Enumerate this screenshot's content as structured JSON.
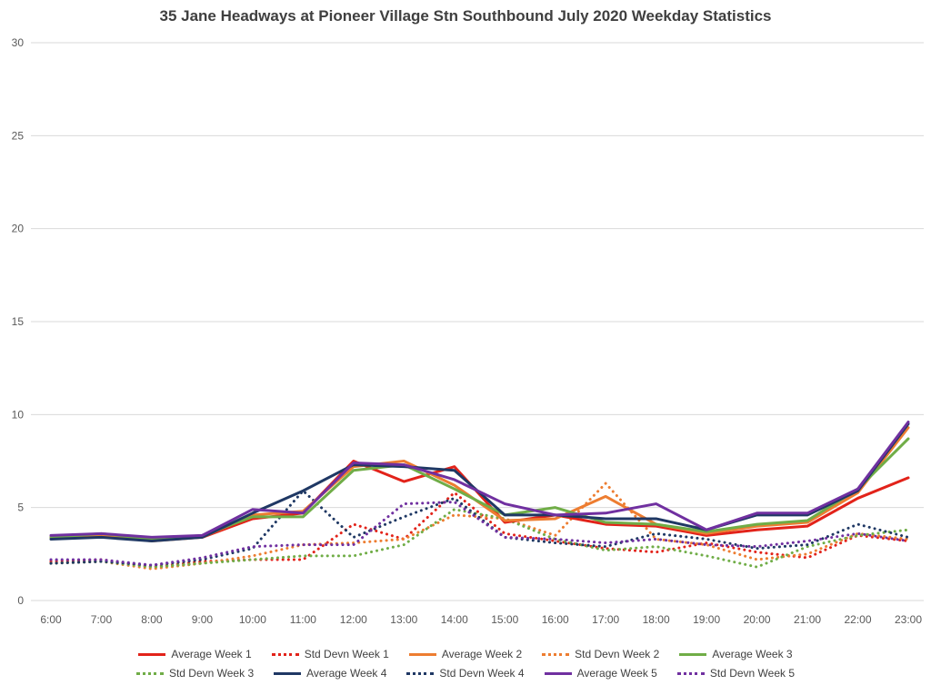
{
  "chart_data": {
    "type": "line",
    "title": "35 Jane Headways at Pioneer Village Stn Southbound July 2020 Weekday Statistics",
    "xlabel": "",
    "ylabel": "",
    "ylim": [
      0,
      30
    ],
    "yticks": [
      0,
      5,
      10,
      15,
      20,
      25,
      30
    ],
    "grid": true,
    "legend_position": "bottom",
    "categories": [
      "6:00",
      "7:00",
      "8:00",
      "9:00",
      "10:00",
      "11:00",
      "12:00",
      "13:00",
      "14:00",
      "15:00",
      "16:00",
      "17:00",
      "18:00",
      "19:00",
      "20:00",
      "21:00",
      "22:00",
      "23:00"
    ],
    "series": [
      {
        "name": "Average Week 1",
        "color": "#e2231a",
        "style": "solid",
        "values": [
          3.4,
          3.5,
          3.3,
          3.4,
          4.4,
          4.7,
          7.5,
          6.4,
          7.2,
          4.2,
          4.6,
          4.1,
          4.0,
          3.5,
          3.8,
          4.0,
          5.5,
          6.6
        ]
      },
      {
        "name": "Std Devn Week 1",
        "color": "#e2231a",
        "style": "dotted",
        "values": [
          2.1,
          2.2,
          1.8,
          2.1,
          2.2,
          2.2,
          4.1,
          3.3,
          5.8,
          3.6,
          3.2,
          2.8,
          2.6,
          3.1,
          2.6,
          2.3,
          3.5,
          3.2
        ]
      },
      {
        "name": "Average Week 2",
        "color": "#ed7d31",
        "style": "solid",
        "values": [
          3.4,
          3.5,
          3.2,
          3.4,
          4.6,
          4.8,
          7.2,
          7.5,
          6.2,
          4.3,
          4.4,
          5.6,
          4.1,
          3.6,
          4.0,
          4.2,
          5.8,
          9.3
        ]
      },
      {
        "name": "Std Devn Week 2",
        "color": "#ed7d31",
        "style": "dotted",
        "values": [
          2.0,
          2.1,
          1.7,
          2.0,
          2.4,
          3.0,
          3.1,
          3.3,
          4.6,
          4.4,
          3.5,
          6.3,
          3.3,
          3.0,
          2.2,
          2.5,
          3.6,
          3.3
        ]
      },
      {
        "name": "Average Week 3",
        "color": "#70ad47",
        "style": "solid",
        "values": [
          3.4,
          3.6,
          3.3,
          3.5,
          4.5,
          4.5,
          7.0,
          7.3,
          6.0,
          4.6,
          5.0,
          4.2,
          4.1,
          3.7,
          4.1,
          4.3,
          6.0,
          8.7
        ]
      },
      {
        "name": "Std Devn Week 3",
        "color": "#70ad47",
        "style": "dotted",
        "values": [
          2.0,
          2.1,
          1.8,
          2.0,
          2.2,
          2.4,
          2.4,
          3.0,
          4.9,
          4.4,
          3.3,
          2.7,
          2.9,
          2.4,
          1.8,
          2.9,
          3.5,
          3.8
        ]
      },
      {
        "name": "Average Week 4",
        "color": "#1f3864",
        "style": "solid",
        "values": [
          3.3,
          3.4,
          3.2,
          3.4,
          4.7,
          5.9,
          7.3,
          7.2,
          7.0,
          4.6,
          4.6,
          4.4,
          4.4,
          3.8,
          4.6,
          4.6,
          5.9,
          9.5
        ]
      },
      {
        "name": "Std Devn Week 4",
        "color": "#1f3864",
        "style": "dotted",
        "values": [
          2.0,
          2.1,
          1.9,
          2.2,
          2.8,
          5.9,
          3.4,
          4.5,
          5.5,
          3.4,
          3.1,
          2.9,
          3.6,
          3.3,
          2.8,
          3.0,
          4.1,
          3.4
        ]
      },
      {
        "name": "Average Week 5",
        "color": "#7030a0",
        "style": "solid",
        "values": [
          3.5,
          3.6,
          3.4,
          3.5,
          4.9,
          4.7,
          7.4,
          7.3,
          6.5,
          5.2,
          4.6,
          4.7,
          5.2,
          3.8,
          4.7,
          4.7,
          6.0,
          9.6
        ]
      },
      {
        "name": "Std Devn Week 5",
        "color": "#7030a0",
        "style": "dotted",
        "values": [
          2.2,
          2.2,
          1.9,
          2.3,
          2.9,
          3.0,
          3.0,
          5.2,
          5.3,
          3.4,
          3.3,
          3.1,
          3.3,
          3.0,
          2.9,
          3.2,
          3.6,
          3.2
        ]
      }
    ],
    "axis_label_color": "#595959",
    "gridline_color": "#d9d9d9"
  }
}
